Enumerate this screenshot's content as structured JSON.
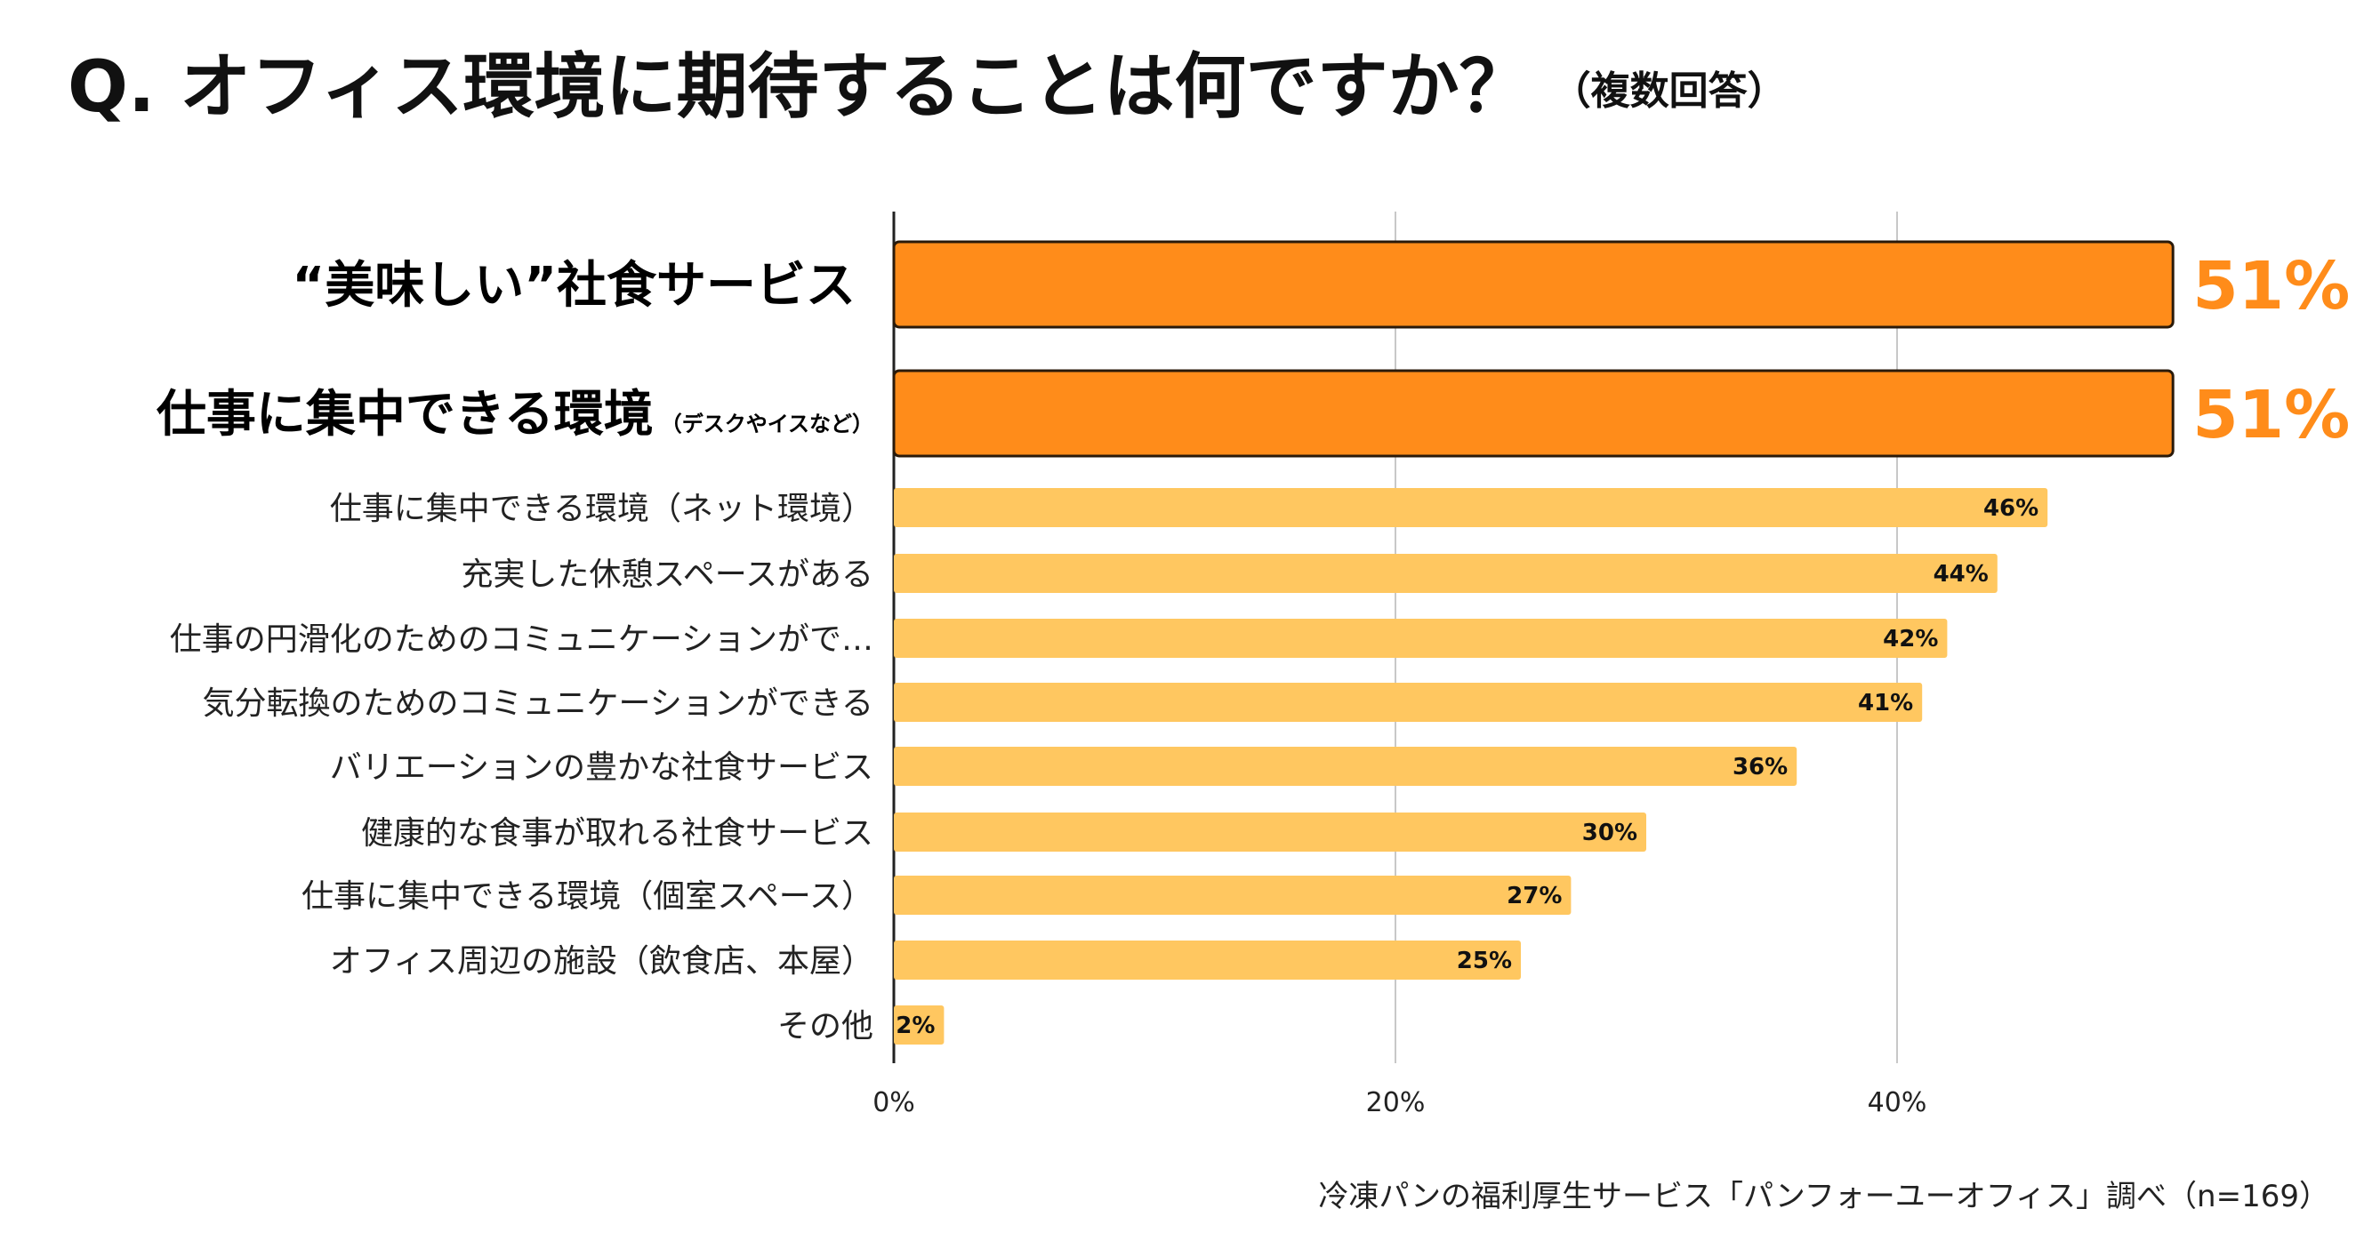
{
  "title": {
    "main": "Q. オフィス環境に期待することは何ですか？",
    "sub": "（複数回答）"
  },
  "source": "冷凍パンの福利厚生サービス「パンフォーユーオフィス」調べ（n=169）",
  "colors": {
    "highlight_bar": "#FF8C1A",
    "highlight_text": "#FF8C1A",
    "normal_bar": "#FFC760",
    "gridline": "#c8c8c8",
    "axis": "#222222"
  },
  "chart_data": {
    "type": "bar",
    "orientation": "horizontal",
    "title": "Q. オフィス環境に期待することは何ですか？（複数回答）",
    "xlabel": "",
    "ylabel": "",
    "xlim": [
      0,
      51
    ],
    "x_ticks": [
      "0%",
      "20%",
      "40%"
    ],
    "x_tick_values": [
      0,
      20,
      40
    ],
    "grid": true,
    "categories": [
      "“美味しい”社食サービス",
      "仕事に集中できる環境",
      "仕事に集中できる環境（ネット環境）",
      "充実した休憩スペースがある",
      "仕事の円滑化のためのコミュニケーションがで…",
      "気分転換のためのコミュニケーションができる",
      "バリエーションの豊かな社食サービス",
      "健康的な食事が取れる社食サービス",
      "仕事に集中できる環境（個室スペース）",
      "オフィス周辺の施設（飲食店、本屋）",
      "その他"
    ],
    "category_notes": [
      "",
      "（デスクやイスなど）",
      "",
      "",
      "",
      "",
      "",
      "",
      "",
      "",
      ""
    ],
    "values": [
      51,
      51,
      46,
      44,
      42,
      41,
      36,
      30,
      27,
      25,
      2
    ],
    "value_labels": [
      "51%",
      "51%",
      "46%",
      "44%",
      "42%",
      "41%",
      "36%",
      "30%",
      "27%",
      "25%",
      "2%"
    ],
    "highlighted": [
      true,
      true,
      false,
      false,
      false,
      false,
      false,
      false,
      false,
      false,
      false
    ]
  }
}
